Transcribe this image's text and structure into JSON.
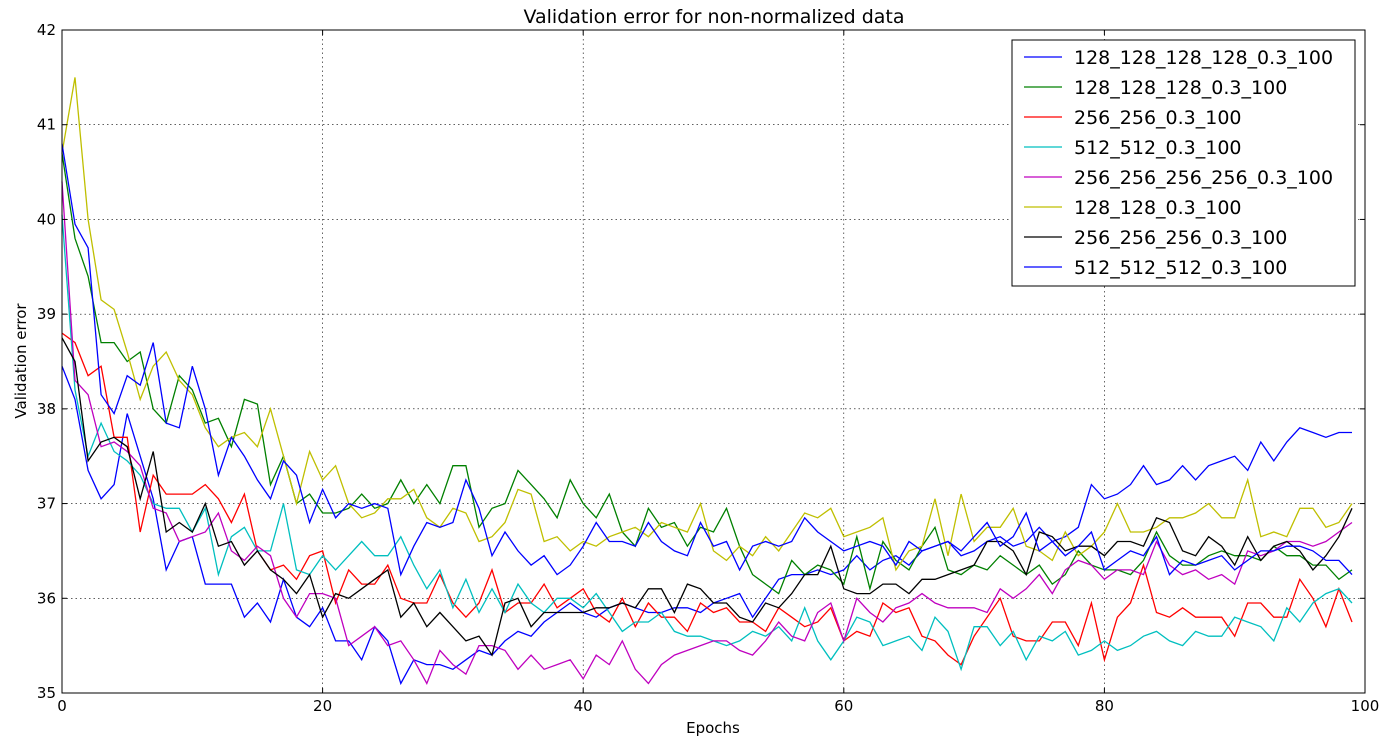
{
  "chart_data": {
    "type": "line",
    "title": "Validation error for non-normalized data",
    "xlabel": "Epochs",
    "ylabel": "Validation error",
    "xlim": [
      0,
      100
    ],
    "ylim": [
      35,
      42
    ],
    "xticks": [
      "0",
      "20",
      "40",
      "60",
      "80",
      "100"
    ],
    "yticks": [
      "35",
      "36",
      "37",
      "38",
      "39",
      "40",
      "41",
      "42"
    ],
    "grid": true,
    "legend_position": "top-right",
    "series": [
      {
        "name": "128_128_128_128_0.3_100",
        "color": "#0000ff",
        "values": [
          38.45,
          38.1,
          37.35,
          37.05,
          37.2,
          37.95,
          37.5,
          37.05,
          36.3,
          36.6,
          36.65,
          36.15,
          36.15,
          36.15,
          35.8,
          35.95,
          35.75,
          36.2,
          35.8,
          35.7,
          35.9,
          35.55,
          35.55,
          35.35,
          35.7,
          35.55,
          35.1,
          35.35,
          35.3,
          35.3,
          35.25,
          35.35,
          35.45,
          35.4,
          35.55,
          35.65,
          35.6,
          35.75,
          35.85,
          35.95,
          35.85,
          35.8,
          35.9,
          35.95,
          35.9,
          35.85,
          35.85,
          35.9,
          35.9,
          35.85,
          35.95,
          36.0,
          36.05,
          35.8,
          36.0,
          36.2,
          36.25,
          36.25,
          36.3,
          36.25,
          36.3,
          36.45,
          36.3,
          36.4,
          36.45,
          36.35,
          36.5,
          36.55,
          36.6,
          36.45,
          36.5,
          36.6,
          36.65,
          36.55,
          36.6,
          36.75,
          36.6,
          36.65,
          36.75,
          37.2,
          37.05,
          37.1,
          37.2,
          37.4,
          37.2,
          37.25,
          37.4,
          37.25,
          37.4,
          37.45,
          37.5,
          37.35,
          37.65,
          37.45,
          37.65,
          37.8,
          37.75,
          37.7,
          37.75,
          37.75
        ]
      },
      {
        "name": "128_128_128_0.3_100",
        "color": "#008000",
        "values": [
          40.7,
          39.8,
          39.4,
          38.7,
          38.7,
          38.5,
          38.6,
          38.0,
          37.85,
          38.35,
          38.2,
          37.85,
          37.9,
          37.6,
          38.1,
          38.05,
          37.2,
          37.5,
          37.0,
          37.1,
          36.9,
          36.9,
          36.95,
          37.1,
          36.95,
          37.0,
          37.25,
          37.0,
          37.2,
          37.0,
          37.4,
          37.4,
          36.75,
          36.95,
          37.0,
          37.35,
          37.2,
          37.05,
          36.85,
          37.25,
          37.0,
          36.85,
          37.1,
          36.7,
          36.55,
          36.95,
          36.75,
          36.8,
          36.55,
          36.75,
          36.7,
          36.95,
          36.55,
          36.25,
          36.15,
          36.05,
          36.4,
          36.25,
          36.35,
          36.3,
          36.15,
          36.65,
          36.1,
          36.6,
          36.4,
          36.3,
          36.55,
          36.75,
          36.3,
          36.25,
          36.35,
          36.3,
          36.45,
          36.35,
          36.25,
          36.35,
          36.15,
          36.25,
          36.5,
          36.35,
          36.3,
          36.3,
          36.25,
          36.4,
          36.7,
          36.45,
          36.35,
          36.35,
          36.45,
          36.5,
          36.45,
          36.45,
          36.4,
          36.55,
          36.45,
          36.45,
          36.35,
          36.35,
          36.2,
          36.3
        ]
      },
      {
        "name": "256_256_0.3_100",
        "color": "#ff0000",
        "values": [
          38.8,
          38.7,
          38.35,
          38.45,
          37.7,
          37.7,
          36.7,
          37.3,
          37.1,
          37.1,
          37.1,
          37.2,
          37.05,
          36.8,
          37.1,
          36.5,
          36.3,
          36.35,
          36.2,
          36.45,
          36.5,
          35.95,
          36.3,
          36.15,
          36.15,
          36.35,
          36.0,
          35.95,
          35.95,
          36.25,
          35.95,
          35.8,
          35.95,
          36.3,
          35.85,
          35.95,
          35.95,
          36.15,
          35.9,
          36.0,
          36.1,
          35.85,
          35.75,
          36.0,
          35.7,
          35.95,
          35.8,
          35.8,
          35.65,
          35.95,
          35.85,
          35.9,
          35.75,
          35.75,
          35.65,
          35.9,
          35.8,
          35.7,
          35.75,
          35.9,
          35.55,
          35.65,
          35.6,
          35.95,
          35.85,
          35.9,
          35.6,
          35.55,
          35.4,
          35.3,
          35.6,
          35.8,
          36.0,
          35.6,
          35.55,
          35.55,
          35.75,
          35.75,
          35.5,
          35.95,
          35.35,
          35.8,
          35.95,
          36.35,
          35.85,
          35.8,
          35.9,
          35.8,
          35.8,
          35.8,
          35.6,
          35.95,
          35.95,
          35.8,
          35.8,
          36.2,
          36.0,
          35.7,
          36.1,
          35.75
        ]
      },
      {
        "name": "512_512_0.3_100",
        "color": "#00bfbf",
        "values": [
          40.05,
          38.2,
          37.5,
          37.85,
          37.55,
          37.45,
          37.3,
          37.0,
          36.95,
          36.95,
          36.7,
          36.95,
          36.25,
          36.65,
          36.75,
          36.5,
          36.5,
          37.0,
          36.3,
          36.25,
          36.45,
          36.3,
          36.45,
          36.6,
          36.45,
          36.45,
          36.65,
          36.35,
          36.1,
          36.3,
          35.9,
          36.2,
          35.85,
          36.1,
          35.85,
          36.15,
          35.95,
          35.85,
          36.0,
          36.0,
          35.9,
          36.05,
          35.85,
          35.65,
          35.75,
          35.75,
          35.85,
          35.65,
          35.6,
          35.6,
          35.55,
          35.5,
          35.55,
          35.65,
          35.6,
          35.7,
          35.55,
          35.9,
          35.55,
          35.35,
          35.55,
          35.8,
          35.75,
          35.5,
          35.55,
          35.6,
          35.45,
          35.8,
          35.65,
          35.25,
          35.7,
          35.7,
          35.5,
          35.65,
          35.35,
          35.6,
          35.55,
          35.65,
          35.4,
          35.45,
          35.55,
          35.45,
          35.5,
          35.6,
          35.65,
          35.55,
          35.5,
          35.65,
          35.6,
          35.6,
          35.8,
          35.75,
          35.7,
          35.55,
          35.9,
          35.75,
          35.95,
          36.05,
          36.1,
          35.95
        ]
      },
      {
        "name": "256_256_256_256_0.3_100",
        "color": "#bf00bf",
        "values": [
          40.4,
          38.3,
          38.15,
          37.6,
          37.65,
          37.55,
          37.4,
          36.95,
          36.9,
          36.6,
          36.65,
          36.7,
          36.9,
          36.5,
          36.4,
          36.55,
          36.45,
          36.0,
          35.8,
          36.05,
          36.05,
          36.0,
          35.5,
          35.6,
          35.7,
          35.5,
          35.55,
          35.35,
          35.1,
          35.45,
          35.3,
          35.2,
          35.5,
          35.5,
          35.45,
          35.25,
          35.4,
          35.25,
          35.3,
          35.35,
          35.15,
          35.4,
          35.3,
          35.55,
          35.25,
          35.1,
          35.3,
          35.4,
          35.45,
          35.5,
          35.55,
          35.55,
          35.45,
          35.4,
          35.55,
          35.75,
          35.6,
          35.55,
          35.85,
          35.95,
          35.55,
          36.0,
          35.85,
          35.75,
          35.9,
          35.95,
          36.05,
          35.95,
          35.9,
          35.9,
          35.9,
          35.85,
          36.1,
          36.0,
          36.1,
          36.25,
          36.05,
          36.3,
          36.4,
          36.35,
          36.2,
          36.3,
          36.3,
          36.25,
          36.6,
          36.35,
          36.25,
          36.3,
          36.2,
          36.25,
          36.15,
          36.5,
          36.45,
          36.5,
          36.6,
          36.6,
          36.55,
          36.6,
          36.7,
          36.8
        ]
      },
      {
        "name": "128_128_0.3_100",
        "color": "#bfbf00",
        "values": [
          40.7,
          41.5,
          40.0,
          39.15,
          39.05,
          38.6,
          38.1,
          38.45,
          38.6,
          38.3,
          38.15,
          37.8,
          37.6,
          37.7,
          37.75,
          37.6,
          38.0,
          37.5,
          37.0,
          37.55,
          37.25,
          37.4,
          37.0,
          36.85,
          36.9,
          37.05,
          37.05,
          37.15,
          36.85,
          36.75,
          36.95,
          36.9,
          36.6,
          36.65,
          36.8,
          37.15,
          37.1,
          36.6,
          36.65,
          36.5,
          36.6,
          36.55,
          36.65,
          36.7,
          36.75,
          36.65,
          36.8,
          36.75,
          36.7,
          37.0,
          36.5,
          36.4,
          36.55,
          36.45,
          36.65,
          36.5,
          36.7,
          36.9,
          36.85,
          36.95,
          36.65,
          36.7,
          36.75,
          36.85,
          36.3,
          36.5,
          36.55,
          37.05,
          36.45,
          37.1,
          36.6,
          36.75,
          36.75,
          36.95,
          36.55,
          36.5,
          36.4,
          36.7,
          36.45,
          36.55,
          36.7,
          37.0,
          36.7,
          36.7,
          36.75,
          36.85,
          36.85,
          36.9,
          37.0,
          36.85,
          36.85,
          37.25,
          36.65,
          36.7,
          36.65,
          36.95,
          36.95,
          36.75,
          36.8,
          37.0
        ]
      },
      {
        "name": "256_256_256_0.3_100",
        "color": "#000000",
        "values": [
          38.75,
          38.5,
          37.45,
          37.65,
          37.7,
          37.6,
          37.05,
          37.55,
          36.7,
          36.8,
          36.7,
          37.0,
          36.55,
          36.6,
          36.35,
          36.5,
          36.3,
          36.2,
          36.05,
          36.25,
          35.8,
          36.05,
          36.0,
          36.1,
          36.2,
          36.3,
          35.8,
          35.95,
          35.7,
          35.85,
          35.7,
          35.55,
          35.6,
          35.4,
          35.95,
          36.0,
          35.7,
          35.85,
          35.85,
          35.85,
          35.85,
          35.9,
          35.9,
          35.95,
          35.9,
          36.1,
          36.1,
          35.85,
          36.15,
          36.1,
          35.95,
          35.95,
          35.8,
          35.75,
          35.95,
          35.9,
          36.05,
          36.25,
          36.25,
          36.55,
          36.1,
          36.05,
          36.05,
          36.15,
          36.15,
          36.05,
          36.2,
          36.2,
          36.25,
          36.3,
          36.35,
          36.6,
          36.6,
          36.5,
          36.25,
          36.7,
          36.65,
          36.5,
          36.55,
          36.55,
          36.45,
          36.6,
          36.6,
          36.55,
          36.85,
          36.8,
          36.5,
          36.45,
          36.65,
          36.55,
          36.35,
          36.65,
          36.4,
          36.55,
          36.6,
          36.5,
          36.3,
          36.45,
          36.65,
          36.95
        ]
      },
      {
        "name": "512_512_512_0.3_100",
        "color": "#0000ff",
        "values": [
          40.8,
          39.95,
          39.7,
          38.15,
          37.95,
          38.35,
          38.25,
          38.7,
          37.85,
          37.8,
          38.45,
          38.0,
          37.3,
          37.7,
          37.5,
          37.25,
          37.05,
          37.45,
          37.3,
          36.8,
          37.15,
          36.85,
          37.0,
          36.95,
          37.0,
          36.95,
          36.25,
          36.55,
          36.8,
          36.75,
          36.8,
          37.25,
          36.95,
          36.45,
          36.7,
          36.5,
          36.35,
          36.45,
          36.25,
          36.35,
          36.55,
          36.8,
          36.6,
          36.6,
          36.55,
          36.8,
          36.6,
          36.5,
          36.45,
          36.8,
          36.55,
          36.6,
          36.3,
          36.55,
          36.6,
          36.55,
          36.6,
          36.85,
          36.7,
          36.6,
          36.5,
          36.55,
          36.6,
          36.55,
          36.35,
          36.6,
          36.5,
          36.55,
          36.6,
          36.5,
          36.65,
          36.8,
          36.55,
          36.65,
          36.9,
          36.5,
          36.6,
          36.45,
          36.55,
          36.7,
          36.3,
          36.4,
          36.5,
          36.45,
          36.65,
          36.25,
          36.4,
          36.35,
          36.4,
          36.45,
          36.3,
          36.4,
          36.5,
          36.5,
          36.55,
          36.55,
          36.5,
          36.4,
          36.4,
          36.25
        ]
      }
    ]
  }
}
